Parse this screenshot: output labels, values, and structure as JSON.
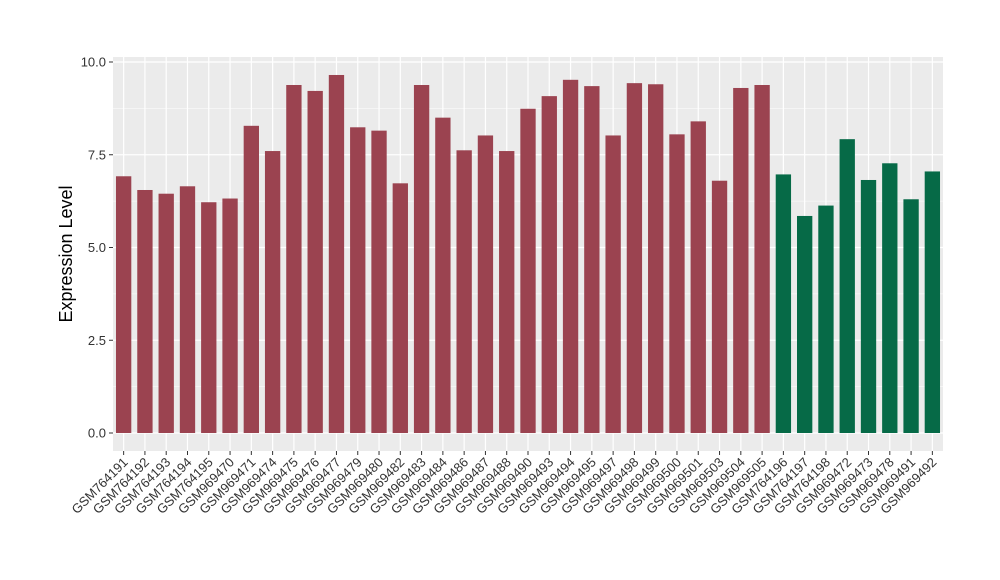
{
  "chart_data": {
    "type": "bar",
    "ylabel": "Expression Level",
    "xlabel": "",
    "ylim": [
      0,
      10.0
    ],
    "yticks": [
      "0.0",
      "2.5",
      "5.0",
      "7.5",
      "10.0"
    ],
    "ytick_values": [
      0,
      2.5,
      5.0,
      7.5,
      10.0
    ],
    "grid": true,
    "colors": {
      "group1": "#9B4350",
      "group2": "#066A47",
      "panel": "#EBEBEB",
      "grid": "#FFFFFF"
    },
    "categories": [
      "GSM764191",
      "GSM764192",
      "GSM764193",
      "GSM764194",
      "GSM764195",
      "GSM969470",
      "GSM969471",
      "GSM969474",
      "GSM969475",
      "GSM969476",
      "GSM969477",
      "GSM969479",
      "GSM969480",
      "GSM969482",
      "GSM969483",
      "GSM969484",
      "GSM969486",
      "GSM969487",
      "GSM969488",
      "GSM969490",
      "GSM969493",
      "GSM969494",
      "GSM969495",
      "GSM969497",
      "GSM969498",
      "GSM969499",
      "GSM969500",
      "GSM969501",
      "GSM969503",
      "GSM969504",
      "GSM969505",
      "GSM764196",
      "GSM764197",
      "GSM764198",
      "GSM969472",
      "GSM969473",
      "GSM969478",
      "GSM969491",
      "GSM969492"
    ],
    "values": [
      6.92,
      6.55,
      6.45,
      6.65,
      6.22,
      6.32,
      8.28,
      7.6,
      9.38,
      9.22,
      9.65,
      8.24,
      8.15,
      6.73,
      9.38,
      8.5,
      7.62,
      8.02,
      7.6,
      8.74,
      9.08,
      9.52,
      9.35,
      8.02,
      9.43,
      9.4,
      8.05,
      8.4,
      6.8,
      9.3,
      9.38,
      6.97,
      5.85,
      6.13,
      7.92,
      6.82,
      7.27,
      6.3,
      7.05
    ],
    "groups": [
      1,
      1,
      1,
      1,
      1,
      1,
      1,
      1,
      1,
      1,
      1,
      1,
      1,
      1,
      1,
      1,
      1,
      1,
      1,
      1,
      1,
      1,
      1,
      1,
      1,
      1,
      1,
      1,
      1,
      1,
      1,
      2,
      2,
      2,
      2,
      2,
      2,
      2,
      2
    ]
  }
}
